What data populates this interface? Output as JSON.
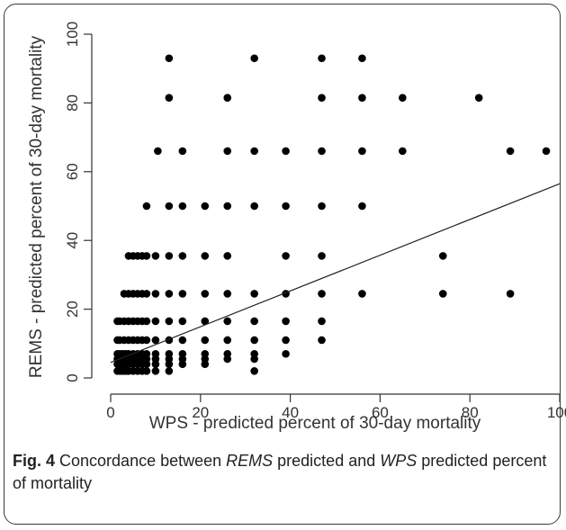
{
  "chart_data": {
    "type": "scatter",
    "xlabel": "WPS - predicted percent of 30-day mortality",
    "ylabel": "REMS - predicted percent of 30-day mortality",
    "xlim": [
      0,
      100
    ],
    "ylim": [
      0,
      100
    ],
    "x_ticks": [
      0,
      20,
      40,
      60,
      80,
      100
    ],
    "y_ticks": [
      0,
      20,
      40,
      60,
      80,
      100
    ],
    "grid": false,
    "points": [
      [
        1.5,
        2
      ],
      [
        2,
        2
      ],
      [
        2.5,
        2
      ],
      [
        3,
        2
      ],
      [
        3.5,
        2
      ],
      [
        4,
        2
      ],
      [
        5,
        2
      ],
      [
        6,
        2
      ],
      [
        7,
        2
      ],
      [
        8,
        2
      ],
      [
        10,
        2
      ],
      [
        13,
        2
      ],
      [
        32,
        2
      ],
      [
        1.5,
        4
      ],
      [
        2,
        4
      ],
      [
        2.5,
        4
      ],
      [
        3,
        4
      ],
      [
        3.5,
        4
      ],
      [
        4,
        4
      ],
      [
        5,
        4
      ],
      [
        6,
        4
      ],
      [
        7,
        4
      ],
      [
        8,
        4
      ],
      [
        10,
        4
      ],
      [
        13,
        4
      ],
      [
        16,
        4
      ],
      [
        21,
        4
      ],
      [
        1.5,
        5.5
      ],
      [
        2,
        5.5
      ],
      [
        2.5,
        5.5
      ],
      [
        3,
        5.5
      ],
      [
        3.5,
        5.5
      ],
      [
        4,
        5.5
      ],
      [
        5,
        5.5
      ],
      [
        6,
        5.5
      ],
      [
        7,
        5.5
      ],
      [
        8,
        5.5
      ],
      [
        10,
        5.5
      ],
      [
        13,
        5.5
      ],
      [
        16,
        5.5
      ],
      [
        21,
        5.5
      ],
      [
        26,
        5.5
      ],
      [
        32,
        5.5
      ],
      [
        1.5,
        7
      ],
      [
        2,
        7
      ],
      [
        2.5,
        7
      ],
      [
        3,
        7
      ],
      [
        3.5,
        7
      ],
      [
        4,
        7
      ],
      [
        5,
        7
      ],
      [
        6,
        7
      ],
      [
        7,
        7
      ],
      [
        8,
        7
      ],
      [
        10,
        7
      ],
      [
        13,
        7
      ],
      [
        16,
        7
      ],
      [
        21,
        7
      ],
      [
        26,
        7
      ],
      [
        32,
        7
      ],
      [
        39,
        7
      ],
      [
        1.5,
        11
      ],
      [
        2,
        11
      ],
      [
        3,
        11
      ],
      [
        4,
        11
      ],
      [
        5,
        11
      ],
      [
        6,
        11
      ],
      [
        7,
        11
      ],
      [
        8,
        11
      ],
      [
        10,
        11
      ],
      [
        13,
        11
      ],
      [
        16,
        11
      ],
      [
        21,
        11
      ],
      [
        26,
        11
      ],
      [
        32,
        11
      ],
      [
        39,
        11
      ],
      [
        47,
        11
      ],
      [
        1.5,
        16.5
      ],
      [
        2,
        16.5
      ],
      [
        3,
        16.5
      ],
      [
        4,
        16.5
      ],
      [
        5,
        16.5
      ],
      [
        6,
        16.5
      ],
      [
        7,
        16.5
      ],
      [
        8,
        16.5
      ],
      [
        10,
        16.5
      ],
      [
        13,
        16.5
      ],
      [
        16,
        16.5
      ],
      [
        21,
        16.5
      ],
      [
        26,
        16.5
      ],
      [
        32,
        16.5
      ],
      [
        39,
        16.5
      ],
      [
        47,
        16.5
      ],
      [
        3,
        24.5
      ],
      [
        4,
        24.5
      ],
      [
        5,
        24.5
      ],
      [
        6,
        24.5
      ],
      [
        7,
        24.5
      ],
      [
        8,
        24.5
      ],
      [
        10,
        24.5
      ],
      [
        13,
        24.5
      ],
      [
        16,
        24.5
      ],
      [
        21,
        24.5
      ],
      [
        26,
        24.5
      ],
      [
        32,
        24.5
      ],
      [
        39,
        24.5
      ],
      [
        47,
        24.5
      ],
      [
        56,
        24.5
      ],
      [
        74,
        24.5
      ],
      [
        89,
        24.5
      ],
      [
        4,
        35.5
      ],
      [
        5,
        35.5
      ],
      [
        6,
        35.5
      ],
      [
        7,
        35.5
      ],
      [
        8,
        35.5
      ],
      [
        10,
        35.5
      ],
      [
        13,
        35.5
      ],
      [
        16,
        35.5
      ],
      [
        21,
        35.5
      ],
      [
        26,
        35.5
      ],
      [
        39,
        35.5
      ],
      [
        47,
        35.5
      ],
      [
        74,
        35.5
      ],
      [
        8,
        50
      ],
      [
        13,
        50
      ],
      [
        16,
        50
      ],
      [
        21,
        50
      ],
      [
        26,
        50
      ],
      [
        32,
        50
      ],
      [
        39,
        50
      ],
      [
        47,
        50
      ],
      [
        56,
        50
      ],
      [
        10.5,
        66
      ],
      [
        16,
        66
      ],
      [
        26,
        66
      ],
      [
        32,
        66
      ],
      [
        39,
        66
      ],
      [
        47,
        66
      ],
      [
        56,
        66
      ],
      [
        65,
        66
      ],
      [
        89,
        66
      ],
      [
        97,
        66
      ],
      [
        13,
        81.5
      ],
      [
        26,
        81.5
      ],
      [
        47,
        81.5
      ],
      [
        56,
        81.5
      ],
      [
        65,
        81.5
      ],
      [
        82,
        81.5
      ],
      [
        13,
        93
      ],
      [
        32,
        93
      ],
      [
        47,
        93
      ],
      [
        56,
        93
      ]
    ],
    "regression_line": {
      "intercept": 4.5,
      "slope": 0.52,
      "x_range": [
        0,
        100
      ]
    }
  },
  "caption": {
    "fig_label": "Fig. 4",
    "part1": " Concordance between ",
    "rems": "REMS",
    "part2": " predicted and ",
    "wps": "WPS",
    "part3": " predicted percent of mortality"
  }
}
